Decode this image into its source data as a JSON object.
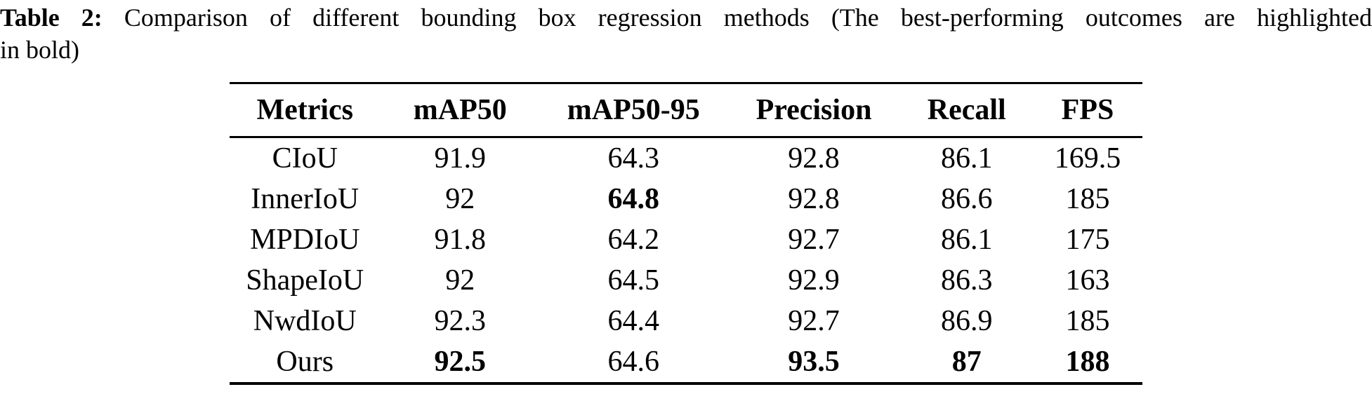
{
  "caption": {
    "label": "Table 2:",
    "line1_rest": " Comparison of different bounding box regression methods (The best-performing outcomes are highlighted",
    "line2": "in bold)"
  },
  "table": {
    "columns": [
      "Metrics",
      "mAP50",
      "mAP50-95",
      "Precision",
      "Recall",
      "FPS"
    ],
    "rows": [
      {
        "cells": [
          "CIoU",
          "91.9",
          "64.3",
          "92.8",
          "86.1",
          "169.5"
        ],
        "bold": [
          false,
          false,
          false,
          false,
          false,
          false
        ]
      },
      {
        "cells": [
          "InnerIoU",
          "92",
          "64.8",
          "92.8",
          "86.6",
          "185"
        ],
        "bold": [
          false,
          false,
          true,
          false,
          false,
          false
        ]
      },
      {
        "cells": [
          "MPDIoU",
          "91.8",
          "64.2",
          "92.7",
          "86.1",
          "175"
        ],
        "bold": [
          false,
          false,
          false,
          false,
          false,
          false
        ]
      },
      {
        "cells": [
          "ShapeIoU",
          "92",
          "64.5",
          "92.9",
          "86.3",
          "163"
        ],
        "bold": [
          false,
          false,
          false,
          false,
          false,
          false
        ]
      },
      {
        "cells": [
          "NwdIoU",
          "92.3",
          "64.4",
          "92.7",
          "86.9",
          "185"
        ],
        "bold": [
          false,
          false,
          false,
          false,
          false,
          false
        ]
      },
      {
        "cells": [
          "Ours",
          "92.5",
          "64.6",
          "93.5",
          "87",
          "188"
        ],
        "bold": [
          false,
          true,
          false,
          true,
          true,
          true
        ]
      }
    ]
  },
  "colors": {
    "text": "#000000",
    "background": "#ffffff",
    "rule": "#000000"
  }
}
